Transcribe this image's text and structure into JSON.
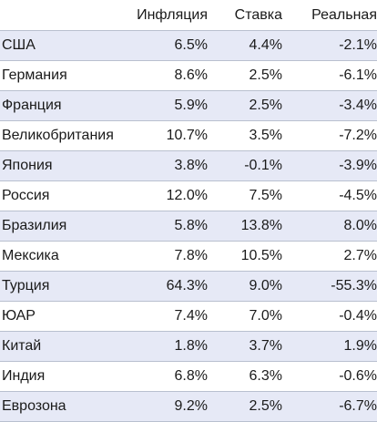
{
  "header": {
    "country": "",
    "inflation": "Инфляция",
    "rate": "Ставка",
    "real": "Реальная"
  },
  "rows": [
    {
      "country": "США",
      "inflation": "6.5%",
      "rate": "4.4%",
      "real": "-2.1%"
    },
    {
      "country": "Германия",
      "inflation": "8.6%",
      "rate": "2.5%",
      "real": "-6.1%"
    },
    {
      "country": "Франция",
      "inflation": "5.9%",
      "rate": "2.5%",
      "real": "-3.4%"
    },
    {
      "country": "Великобритания",
      "inflation": "10.7%",
      "rate": "3.5%",
      "real": "-7.2%"
    },
    {
      "country": "Япония",
      "inflation": "3.8%",
      "rate": "-0.1%",
      "real": "-3.9%"
    },
    {
      "country": "Россия",
      "inflation": "12.0%",
      "rate": "7.5%",
      "real": "-4.5%"
    },
    {
      "country": "Бразилия",
      "inflation": "5.8%",
      "rate": "13.8%",
      "real": "8.0%"
    },
    {
      "country": "Мексика",
      "inflation": "7.8%",
      "rate": "10.5%",
      "real": "2.7%"
    },
    {
      "country": "Турция",
      "inflation": "64.3%",
      "rate": "9.0%",
      "real": "-55.3%"
    },
    {
      "country": "ЮАР",
      "inflation": "7.4%",
      "rate": "7.0%",
      "real": "-0.4%"
    },
    {
      "country": "Китай",
      "inflation": "1.8%",
      "rate": "3.7%",
      "real": "1.9%"
    },
    {
      "country": "Индия",
      "inflation": "6.8%",
      "rate": "6.3%",
      "real": "-0.6%"
    },
    {
      "country": "Еврозона",
      "inflation": "9.2%",
      "rate": "2.5%",
      "real": "-6.7%"
    }
  ],
  "colors": {
    "stripe": "#e6e9f6",
    "divider": "#b9c0cf",
    "text": "#1a1a1a"
  }
}
